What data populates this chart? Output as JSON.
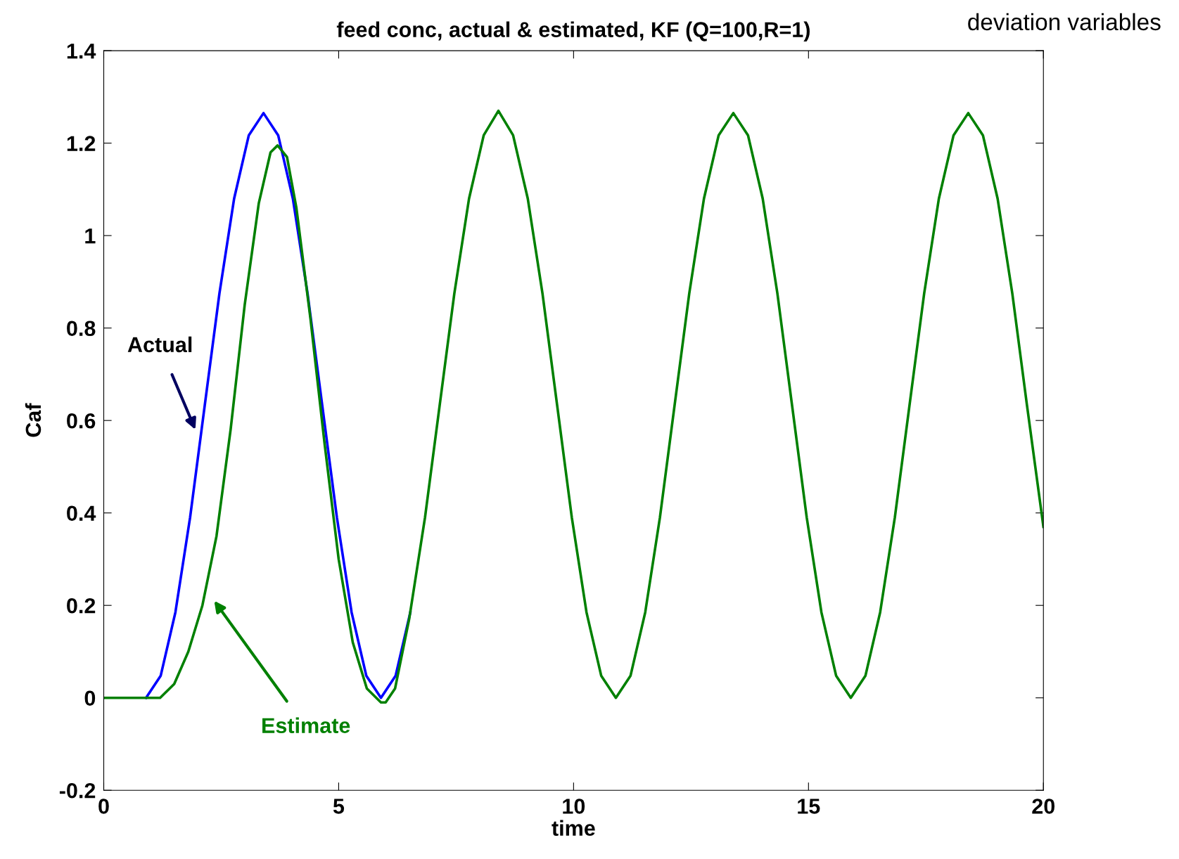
{
  "chart_data": {
    "type": "line",
    "title": "feed conc, actual & estimated, KF (Q=100,R=1)",
    "xlabel": "time",
    "ylabel": "Caf",
    "xlim": [
      0,
      20
    ],
    "xticks": [
      0,
      5,
      10,
      15,
      20
    ],
    "ylim": [
      -0.2,
      1.4
    ],
    "yticks": [
      -0.2,
      0,
      0.2,
      0.4,
      0.6,
      0.8,
      1,
      1.2,
      1.4
    ],
    "grid": false,
    "legend": false,
    "marker": "none",
    "line_style": "solid",
    "series": [
      {
        "color": "#0000ff",
        "x": [
          0.9,
          1.2125,
          1.525,
          1.8375,
          2.15,
          2.4625,
          2.775,
          3.0875,
          3.4,
          3.7125,
          4.025,
          4.3375,
          4.65,
          4.9625,
          5.275,
          5.5875,
          5.9,
          6.2125,
          6.525
        ],
        "values": [
          0,
          0.048,
          0.185,
          0.39,
          0.633,
          0.875,
          1.08,
          1.217,
          1.265,
          1.217,
          1.08,
          0.875,
          0.633,
          0.39,
          0.185,
          0.048,
          0,
          0.048,
          0.185
        ]
      },
      {
        "color": "#008000",
        "x": [
          0,
          1.2,
          1.5,
          1.8,
          2.1,
          2.4,
          2.7,
          3.0,
          3.3,
          3.55,
          3.7,
          3.9,
          4.1,
          4.4,
          4.7,
          5.0,
          5.3,
          5.6,
          5.9,
          6.0,
          6.2,
          6.5,
          6.8375,
          7.15,
          7.4625,
          7.775,
          8.0875,
          8.4,
          8.7125,
          9.025,
          9.3375,
          9.65,
          9.9625,
          10.275,
          10.5875,
          10.9,
          11.2125,
          11.525,
          11.8375,
          12.15,
          12.4625,
          12.775,
          13.0875,
          13.4,
          13.7125,
          14.025,
          14.3375,
          14.65,
          14.9625,
          15.275,
          15.5875,
          15.9,
          16.2125,
          16.525,
          16.8375,
          17.15,
          17.4625,
          17.775,
          18.0875,
          18.4,
          18.7125,
          19.025,
          19.3375,
          19.65,
          20
        ],
        "values": [
          0,
          0,
          0.03,
          0.1,
          0.2,
          0.35,
          0.58,
          0.85,
          1.07,
          1.18,
          1.195,
          1.17,
          1.06,
          0.82,
          0.55,
          0.3,
          0.12,
          0.02,
          -0.01,
          -0.01,
          0.02,
          0.17,
          0.39,
          0.633,
          0.875,
          1.08,
          1.217,
          1.27,
          1.217,
          1.08,
          0.875,
          0.633,
          0.39,
          0.185,
          0.048,
          0,
          0.048,
          0.185,
          0.39,
          0.633,
          0.875,
          1.08,
          1.217,
          1.265,
          1.217,
          1.08,
          0.875,
          0.633,
          0.39,
          0.185,
          0.048,
          0,
          0.048,
          0.185,
          0.39,
          0.633,
          0.875,
          1.08,
          1.217,
          1.265,
          1.217,
          1.08,
          0.875,
          0.633,
          0.37
        ]
      }
    ],
    "annotations": [
      "Actual",
      "Estimate",
      "deviation variables"
    ]
  }
}
